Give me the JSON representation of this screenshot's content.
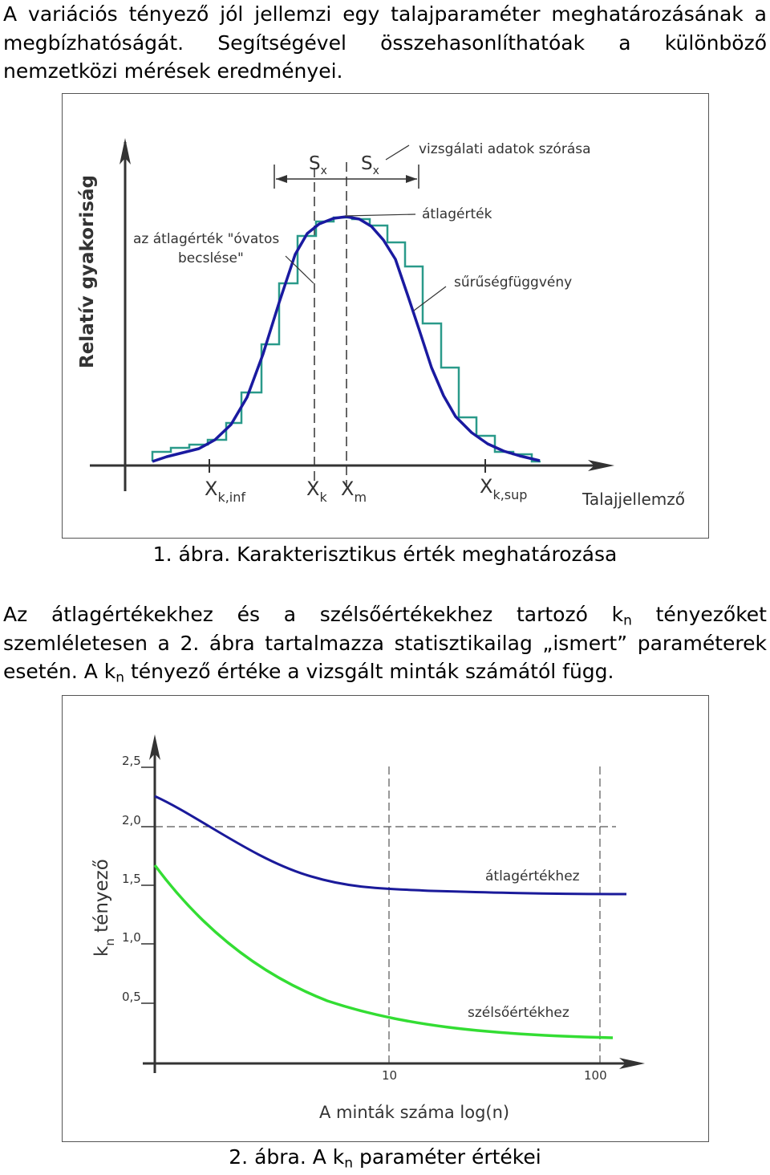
{
  "paragraph1": "A variációs tényező jól jellemzi egy talajparaméter meghatározásának a megbízhatóságát. Segítségével összehasonlíthatóak a különböző nemzetközi mérések eredményei.",
  "paragraph2": {
    "before": "Az átlagértékekhez és a szélsőértékekhez tartozó k",
    "sub": "n",
    "after": " tényezőket szemléletesen a 2. ábra tartalmazza statisztikailag „ismert” paraméterek esetén. A k",
    "sub2": "n",
    "after2": " tényező értéke a vizsgált minták számától függ."
  },
  "figure1": {
    "caption": "1. ábra. Karakterisztikus érték meghatározása",
    "ylabel": "Relatív gyakoriság",
    "xlabel": "Talajjellemző",
    "annotations": {
      "spread": "vizsgálati adatok szórása",
      "mean": "átlagérték",
      "cautious_line1": "az átlagérték \"óvatos",
      "cautious_line2": "becslése\"",
      "density": "sűrűségfüggvény"
    },
    "sx_label": "S",
    "sx_sub": "x",
    "x_ticks": [
      {
        "main": "X",
        "sub": "k,inf"
      },
      {
        "main": "X",
        "sub": "k"
      },
      {
        "main": "X",
        "sub": "m"
      },
      {
        "main": "X",
        "sub": "k,sup"
      }
    ],
    "colors": {
      "density_curve": "#1a1aa0",
      "histogram": "#2a9a8a",
      "axis": "#333333"
    }
  },
  "figure2": {
    "caption": {
      "before": "2. ábra. A k",
      "sub": "n",
      "after": " paraméter értékei"
    },
    "ylabel": {
      "main": "k",
      "sub": "n",
      "after": " tényező"
    },
    "xlabel": "A minták száma log(n)",
    "y_ticks": [
      "0,5",
      "1,0",
      "1,5",
      "2,0",
      "2,5"
    ],
    "x_ticks": [
      "10",
      "100"
    ],
    "series": [
      {
        "name": "átlagértékhez",
        "color": "#1a1a9a"
      },
      {
        "name": "szélsőértékhez",
        "color": "#33dd33"
      }
    ]
  }
}
